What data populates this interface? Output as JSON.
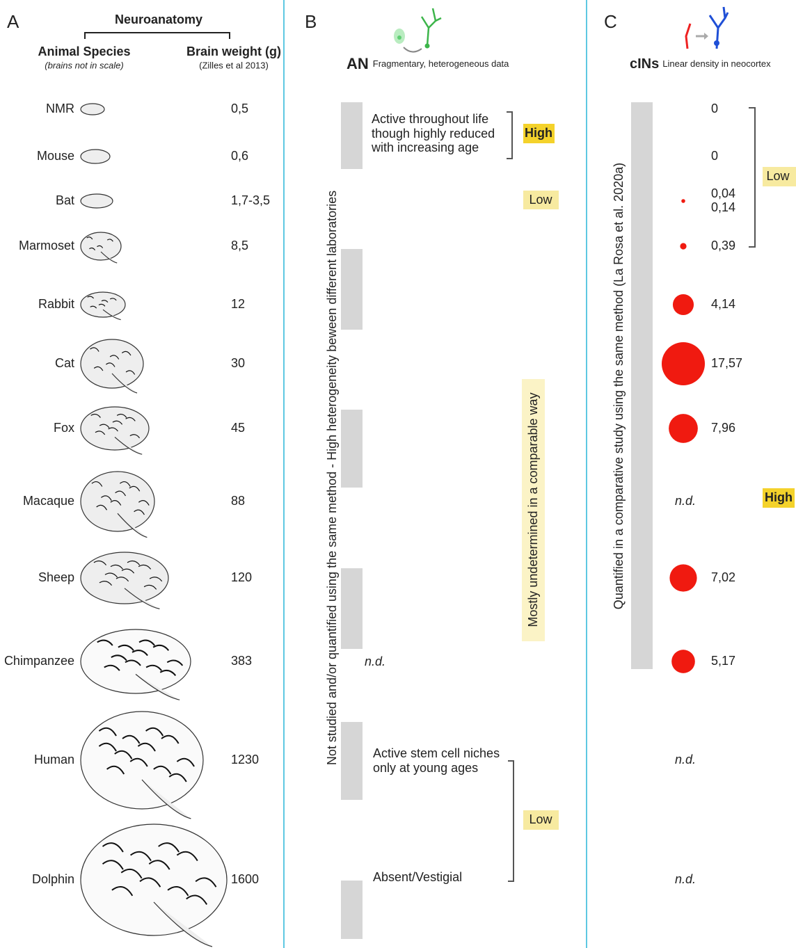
{
  "panel_a": {
    "letter": "A",
    "group_title": "Neuroanatomy",
    "col1_title": "Animal Species",
    "col1_note": "(brains not in scale)",
    "col2_title": "Brain weight (g)",
    "col2_note": "(Zilles et al 2013)",
    "rows": [
      {
        "species": "NMR",
        "weight": "0,5"
      },
      {
        "species": "Mouse",
        "weight": "0,6"
      },
      {
        "species": "Bat",
        "weight": "1,7-3,5"
      },
      {
        "species": "Marmoset",
        "weight": "8,5"
      },
      {
        "species": "Rabbit",
        "weight": "12"
      },
      {
        "species": "Cat",
        "weight": "30"
      },
      {
        "species": "Fox",
        "weight": "45"
      },
      {
        "species": "Macaque",
        "weight": "88"
      },
      {
        "species": "Sheep",
        "weight": "120"
      },
      {
        "species": "Chimpanzee",
        "weight": "383"
      },
      {
        "species": "Human",
        "weight": "1230"
      },
      {
        "species": "Dolphin",
        "weight": "1600"
      }
    ]
  },
  "panel_b": {
    "letter": "B",
    "title": "AN",
    "subtitle": "Fragmentary, heterogeneous data",
    "side_label": "Not studied and/or quantified using the same method - High heterogeneity beween different laboratories",
    "nd": "n.d.",
    "block_high": [
      "Active throughout life",
      "though highly reduced",
      "with increasing age"
    ],
    "high": "High",
    "low_top": "Low",
    "middle": "Mostly undetermined in a comparable way",
    "block_low": [
      "Active stem cell niches",
      "only at young ages"
    ],
    "absent": "Absent/Vestigial",
    "low_bottom": "Low"
  },
  "panel_c": {
    "letter": "C",
    "title": "cINs",
    "subtitle": "Linear density in neocortex",
    "side_label": "Quantified in a comparative study using the same method (La Rosa et al. 2020a)",
    "low": "Low",
    "high": "High",
    "values": [
      [
        {
          "value": 0,
          "label": "0"
        }
      ],
      [
        {
          "value": 0,
          "label": "0"
        }
      ],
      [
        {
          "value": 0.04,
          "label": "0,04"
        },
        {
          "value": 0.14,
          "label": "0,14"
        }
      ],
      [
        {
          "value": 0.39,
          "label": "0,39"
        }
      ],
      [
        {
          "value": 4.14,
          "label": "4,14"
        }
      ],
      [
        {
          "value": 17.57,
          "label": "17,57"
        }
      ],
      [
        {
          "value": 7.96,
          "label": "7,96"
        }
      ],
      "n.d.",
      [
        {
          "value": 7.02,
          "label": "7,02"
        }
      ],
      [
        {
          "value": 5.17,
          "label": "5,17"
        }
      ],
      "n.d.",
      "n.d."
    ]
  }
}
